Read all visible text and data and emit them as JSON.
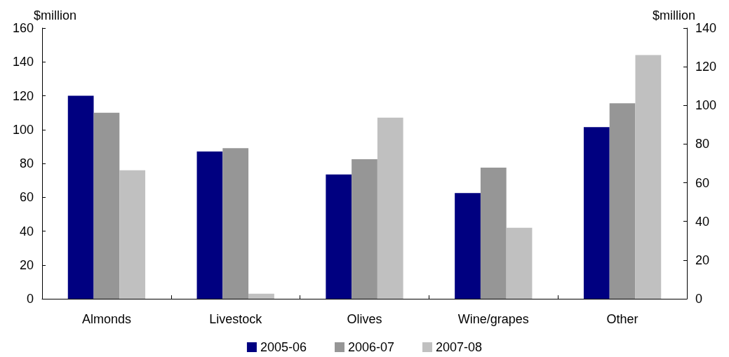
{
  "chart_data": {
    "type": "bar",
    "categories": [
      "Almonds",
      "Livestock",
      "Olives",
      "Wine/grapes",
      "Other"
    ],
    "series": [
      {
        "name": "2005-06",
        "color": "#000080",
        "values": [
          120,
          87,
          73.5,
          62.5,
          101.5
        ]
      },
      {
        "name": "2006-07",
        "color": "#969696",
        "values": [
          110,
          89,
          82.5,
          77.5,
          115.5
        ]
      },
      {
        "name": "2007-08",
        "color": "#c0c0c0",
        "values": [
          76,
          3,
          107,
          42,
          144
        ]
      }
    ],
    "ylabel": "$million",
    "y2label": "$million",
    "ylim": [
      0,
      160
    ],
    "yticks": [
      0,
      20,
      40,
      60,
      80,
      100,
      120,
      140,
      160
    ],
    "y2lim": [
      0,
      140
    ],
    "y2ticks": [
      0,
      20,
      40,
      60,
      80,
      100,
      120,
      140
    ],
    "grid": false,
    "legend": "bottom"
  }
}
